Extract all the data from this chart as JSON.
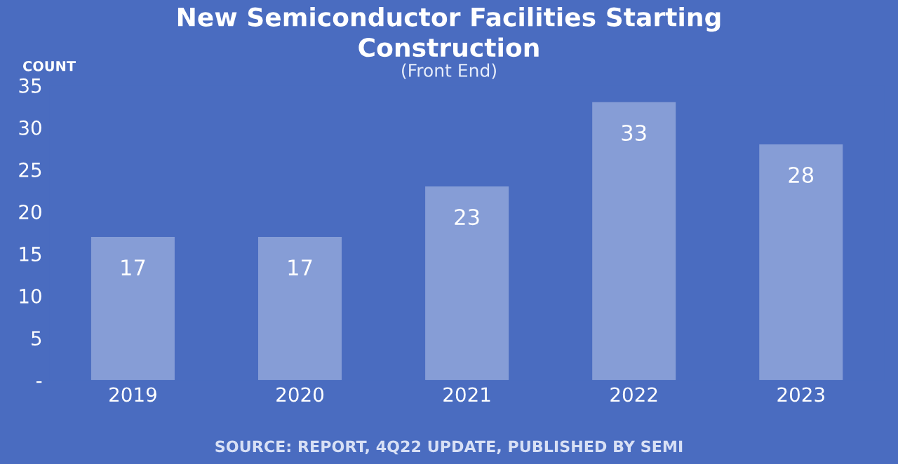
{
  "chart_data": {
    "type": "bar",
    "title": "New Semiconductor Facilities Starting\nConstruction",
    "subtitle": "(Front End)",
    "ylabel": "COUNT",
    "categories": [
      "2019",
      "2020",
      "2021",
      "2022",
      "2023"
    ],
    "values": [
      17,
      17,
      23,
      33,
      28
    ],
    "color": "#91a6d9",
    "ylim": [
      0,
      35
    ],
    "yticks": [
      {
        "value": 0,
        "label": "-"
      },
      5,
      10,
      15,
      20,
      25,
      30,
      35
    ],
    "data_labels": true,
    "grid": false,
    "annotations": [
      "SOURCE: REPORT, 4Q22 UPDATE, PUBLISHED BY SEMI"
    ]
  }
}
